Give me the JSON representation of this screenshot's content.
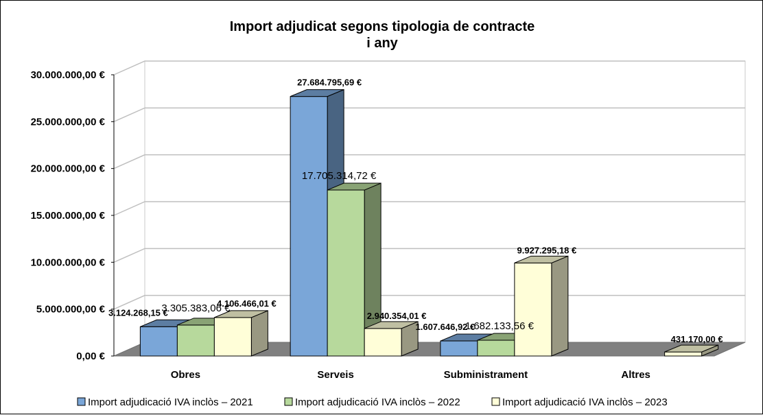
{
  "chart_data": {
    "type": "bar",
    "style": "3d-clustered-column",
    "title_lines": [
      "Import adjudicat segons tipologia de contracte",
      "i any"
    ],
    "categories": [
      "Obres",
      "Serveis",
      "Subministrament",
      "Altres"
    ],
    "series": [
      {
        "name": "Import adjudicació IVA inclòs – 2021",
        "color": "#7aa6d8",
        "values": [
          3124268.15,
          27684795.69,
          1607646.92,
          null
        ],
        "labels": [
          "3.124.268,15 €",
          "27.684.795,69 €",
          "1.607.646,92 €",
          null
        ]
      },
      {
        "name": "Import adjudicació IVA inclòs – 2022",
        "color": "#b7d99c",
        "values": [
          3305383.06,
          17705314.72,
          1682133.56,
          null
        ],
        "labels": [
          "3.305.383,06 €",
          "17.705.314,72 €",
          "1.682.133,56 €",
          null
        ]
      },
      {
        "name": "Import adjudicació IVA inclòs – 2023",
        "color": "#fffed8",
        "values": [
          4106466.01,
          2940354.01,
          9927295.18,
          431170.0
        ],
        "labels": [
          "4.106.466,01 €",
          "2.940.354,01 €",
          "9.927.295,18 €",
          "431.170,00 €"
        ]
      }
    ],
    "y_ticks": [
      "0,00 €",
      "5.000.000,00 €",
      "10.000.000,00 €",
      "15.000.000,00 €",
      "20.000.000,00 €",
      "25.000.000,00 €",
      "30.000.000,00 €"
    ],
    "ylim": [
      0,
      30000000
    ],
    "ystep": 5000000,
    "grid": true,
    "legend_position": "bottom",
    "floor_color": "#808080"
  }
}
